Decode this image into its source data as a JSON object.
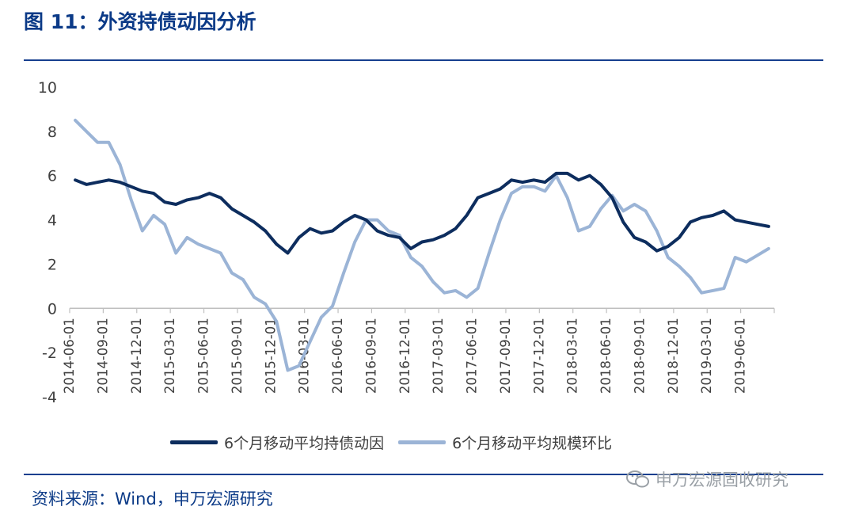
{
  "title": "图 11：外资持债动因分析",
  "source": "资料来源：Wind，申万宏源研究",
  "watermark": {
    "text": "申万宏源固收研究",
    "icon": "wechat-icon"
  },
  "colors": {
    "series1": "#0d2d5e",
    "series2": "#9bb4d6",
    "title": "#0b3a87",
    "rule": "#163f8f"
  },
  "chart_data": {
    "type": "line",
    "title": "",
    "xlabel": "",
    "ylabel": "",
    "ylim": [
      -4,
      10
    ],
    "yticks": [
      -4,
      -2,
      0,
      2,
      4,
      6,
      8,
      10
    ],
    "grid": false,
    "legend_position": "bottom",
    "x": [
      "2014-06",
      "2014-07",
      "2014-08",
      "2014-09",
      "2014-10",
      "2014-11",
      "2014-12",
      "2015-01",
      "2015-02",
      "2015-03",
      "2015-04",
      "2015-05",
      "2015-06",
      "2015-07",
      "2015-08",
      "2015-09",
      "2015-10",
      "2015-11",
      "2015-12",
      "2016-01",
      "2016-02",
      "2016-03",
      "2016-04",
      "2016-05",
      "2016-06",
      "2016-07",
      "2016-08",
      "2016-09",
      "2016-10",
      "2016-11",
      "2016-12",
      "2017-01",
      "2017-02",
      "2017-03",
      "2017-04",
      "2017-05",
      "2017-06",
      "2017-07",
      "2017-08",
      "2017-09",
      "2017-10",
      "2017-11",
      "2017-12",
      "2018-01",
      "2018-02",
      "2018-03",
      "2018-04",
      "2018-05",
      "2018-06",
      "2018-07",
      "2018-08",
      "2018-09",
      "2018-10",
      "2018-11",
      "2018-12",
      "2019-01",
      "2019-02",
      "2019-03",
      "2019-04",
      "2019-05",
      "2019-06",
      "2019-07",
      "2019-08"
    ],
    "tick_labels": [
      "2014-06-01",
      "2014-09-01",
      "2014-12-01",
      "2015-03-01",
      "2015-06-01",
      "2015-09-01",
      "2015-12-01",
      "2016-03-01",
      "2016-06-01",
      "2016-09-01",
      "2016-12-01",
      "2017-03-01",
      "2017-06-01",
      "2017-09-01",
      "2017-12-01",
      "2018-03-01",
      "2018-06-01",
      "2018-09-01",
      "2018-12-01",
      "2019-03-01",
      "2019-06-01"
    ],
    "series": [
      {
        "name": "6个月移动平均持债动因",
        "color": "#0d2d5e",
        "values": [
          5.8,
          5.6,
          5.7,
          5.8,
          5.7,
          5.5,
          5.3,
          5.2,
          4.8,
          4.7,
          4.9,
          5.0,
          5.2,
          5.0,
          4.5,
          4.2,
          3.9,
          3.5,
          2.9,
          2.5,
          3.2,
          3.6,
          3.4,
          3.5,
          3.9,
          4.2,
          4.0,
          3.5,
          3.3,
          3.2,
          2.7,
          3.0,
          3.1,
          3.3,
          3.6,
          4.2,
          5.0,
          5.2,
          5.4,
          5.8,
          5.7,
          5.8,
          5.7,
          6.1,
          6.1,
          5.8,
          6.0,
          5.6,
          5.0,
          3.9,
          3.2,
          3.0,
          2.6,
          2.8,
          3.2,
          3.9,
          4.1,
          4.2,
          4.4,
          4.0,
          3.9,
          3.8,
          3.7
        ]
      },
      {
        "name": "6个月移动平均规模环比",
        "color": "#9bb4d6",
        "values": [
          8.5,
          8.0,
          7.5,
          7.5,
          6.5,
          4.9,
          3.5,
          4.2,
          3.8,
          2.5,
          3.2,
          2.9,
          2.7,
          2.5,
          1.6,
          1.3,
          0.5,
          0.2,
          -0.6,
          -2.8,
          -2.6,
          -1.5,
          -0.4,
          0.1,
          1.6,
          3.0,
          4.0,
          4.0,
          3.5,
          3.3,
          2.3,
          1.9,
          1.2,
          0.7,
          0.8,
          0.5,
          0.9,
          2.5,
          4.0,
          5.2,
          5.5,
          5.5,
          5.3,
          6.0,
          5.0,
          3.5,
          3.7,
          4.5,
          5.1,
          4.4,
          4.7,
          4.4,
          3.5,
          2.3,
          1.9,
          1.4,
          0.7,
          0.8,
          0.9,
          2.3,
          2.1,
          2.4,
          2.7
        ]
      }
    ]
  }
}
